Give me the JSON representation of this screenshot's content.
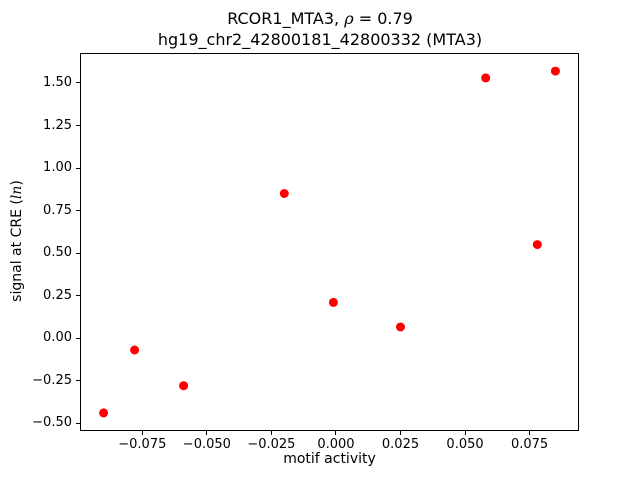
{
  "title": {
    "line1_prefix": "RCOR1_MTA3, ",
    "rho_symbol": "ρ",
    "line1_suffix": " = 0.79",
    "line2": "hg19_chr2_42800181_42800332 (MTA3)"
  },
  "chart_data": {
    "type": "scatter",
    "title": "RCOR1_MTA3, ρ = 0.79",
    "subtitle": "hg19_chr2_42800181_42800332 (MTA3)",
    "correlation_rho": 0.79,
    "xlabel": "motif activity",
    "ylabel": "signal at CRE (ln)",
    "ylabel_prefix": "signal at CRE (",
    "ylabel_italic": "ln",
    "ylabel_suffix": ")",
    "marker_color": "#ff0000",
    "marker_radius": 4.5,
    "grid": false,
    "legend": false,
    "xlim": [
      -0.09875,
      0.09375
    ],
    "ylim": [
      -0.5405,
      1.6705
    ],
    "xticks": [
      -0.075,
      -0.05,
      -0.025,
      0.0,
      0.025,
      0.05,
      0.075
    ],
    "xtick_labels": [
      "−0.075",
      "−0.050",
      "−0.025",
      "0.000",
      "0.025",
      "0.050",
      "0.075"
    ],
    "yticks": [
      -0.5,
      -0.25,
      0.0,
      0.25,
      0.5,
      0.75,
      1.0,
      1.25,
      1.5
    ],
    "ytick_labels": [
      "−0.50",
      "−0.25",
      "0.00",
      "0.25",
      "0.50",
      "0.75",
      "1.00",
      "1.25",
      "1.50"
    ],
    "points": [
      {
        "x": -0.09,
        "y": -0.44
      },
      {
        "x": -0.078,
        "y": -0.07
      },
      {
        "x": -0.059,
        "y": -0.28
      },
      {
        "x": -0.02,
        "y": 0.85
      },
      {
        "x": -0.001,
        "y": 0.21
      },
      {
        "x": 0.025,
        "y": 0.065
      },
      {
        "x": 0.058,
        "y": 1.53
      },
      {
        "x": 0.078,
        "y": 0.55
      },
      {
        "x": 0.085,
        "y": 1.57
      }
    ]
  }
}
